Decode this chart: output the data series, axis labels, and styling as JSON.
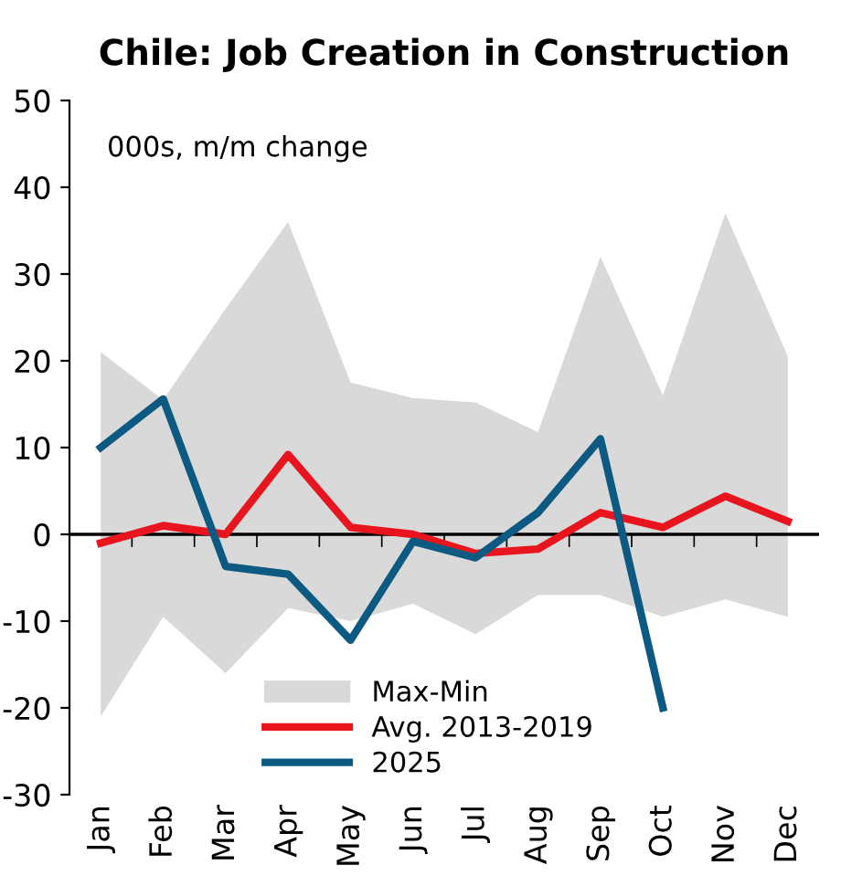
{
  "chart_data": {
    "type": "line",
    "title": "Chile: Job Creation in Construction",
    "annotations": [
      "000s, m/m change"
    ],
    "categories": [
      "Jan",
      "Feb",
      "Mar",
      "Apr",
      "May",
      "Jun",
      "Jul",
      "Aug",
      "Sep",
      "Oct",
      "Nov",
      "Dec"
    ],
    "series": [
      {
        "name": "Max-Min",
        "type": "area",
        "color": "#d9d9d9",
        "values": [
          null,
          null,
          null,
          null,
          null,
          null,
          null,
          null,
          null,
          null,
          null,
          null
        ],
        "upper": [
          21,
          15.5,
          26,
          36,
          17.5,
          15.7,
          15.2,
          11.8,
          32,
          16,
          37,
          20.5
        ],
        "lower": [
          -21,
          -9.5,
          -16,
          -8.5,
          -10,
          -8,
          -11.5,
          -7,
          -7,
          -9.5,
          -7.5,
          -9.5
        ]
      },
      {
        "name": "Avg. 2013-2019",
        "color": "#e8141e",
        "values": [
          -1,
          1,
          0,
          9.2,
          0.8,
          0,
          -2.2,
          -1.7,
          2.5,
          0.8,
          4.4,
          1.5
        ]
      },
      {
        "name": "2025",
        "color": "#0c5a82",
        "values": [
          10,
          15.6,
          -3.7,
          -4.6,
          -12.2,
          -0.8,
          -2.7,
          2.5,
          11,
          -20,
          null,
          null
        ]
      }
    ],
    "ylim": [
      -30,
      50
    ],
    "yticks": [
      -30,
      -20,
      -10,
      0,
      10,
      20,
      30,
      40,
      50
    ],
    "ref_lines": [
      {
        "axis": "y",
        "value": 0,
        "color": "#000000"
      }
    ],
    "grid": false,
    "legend": "bottom",
    "marker": "none",
    "line_style": "solid"
  }
}
